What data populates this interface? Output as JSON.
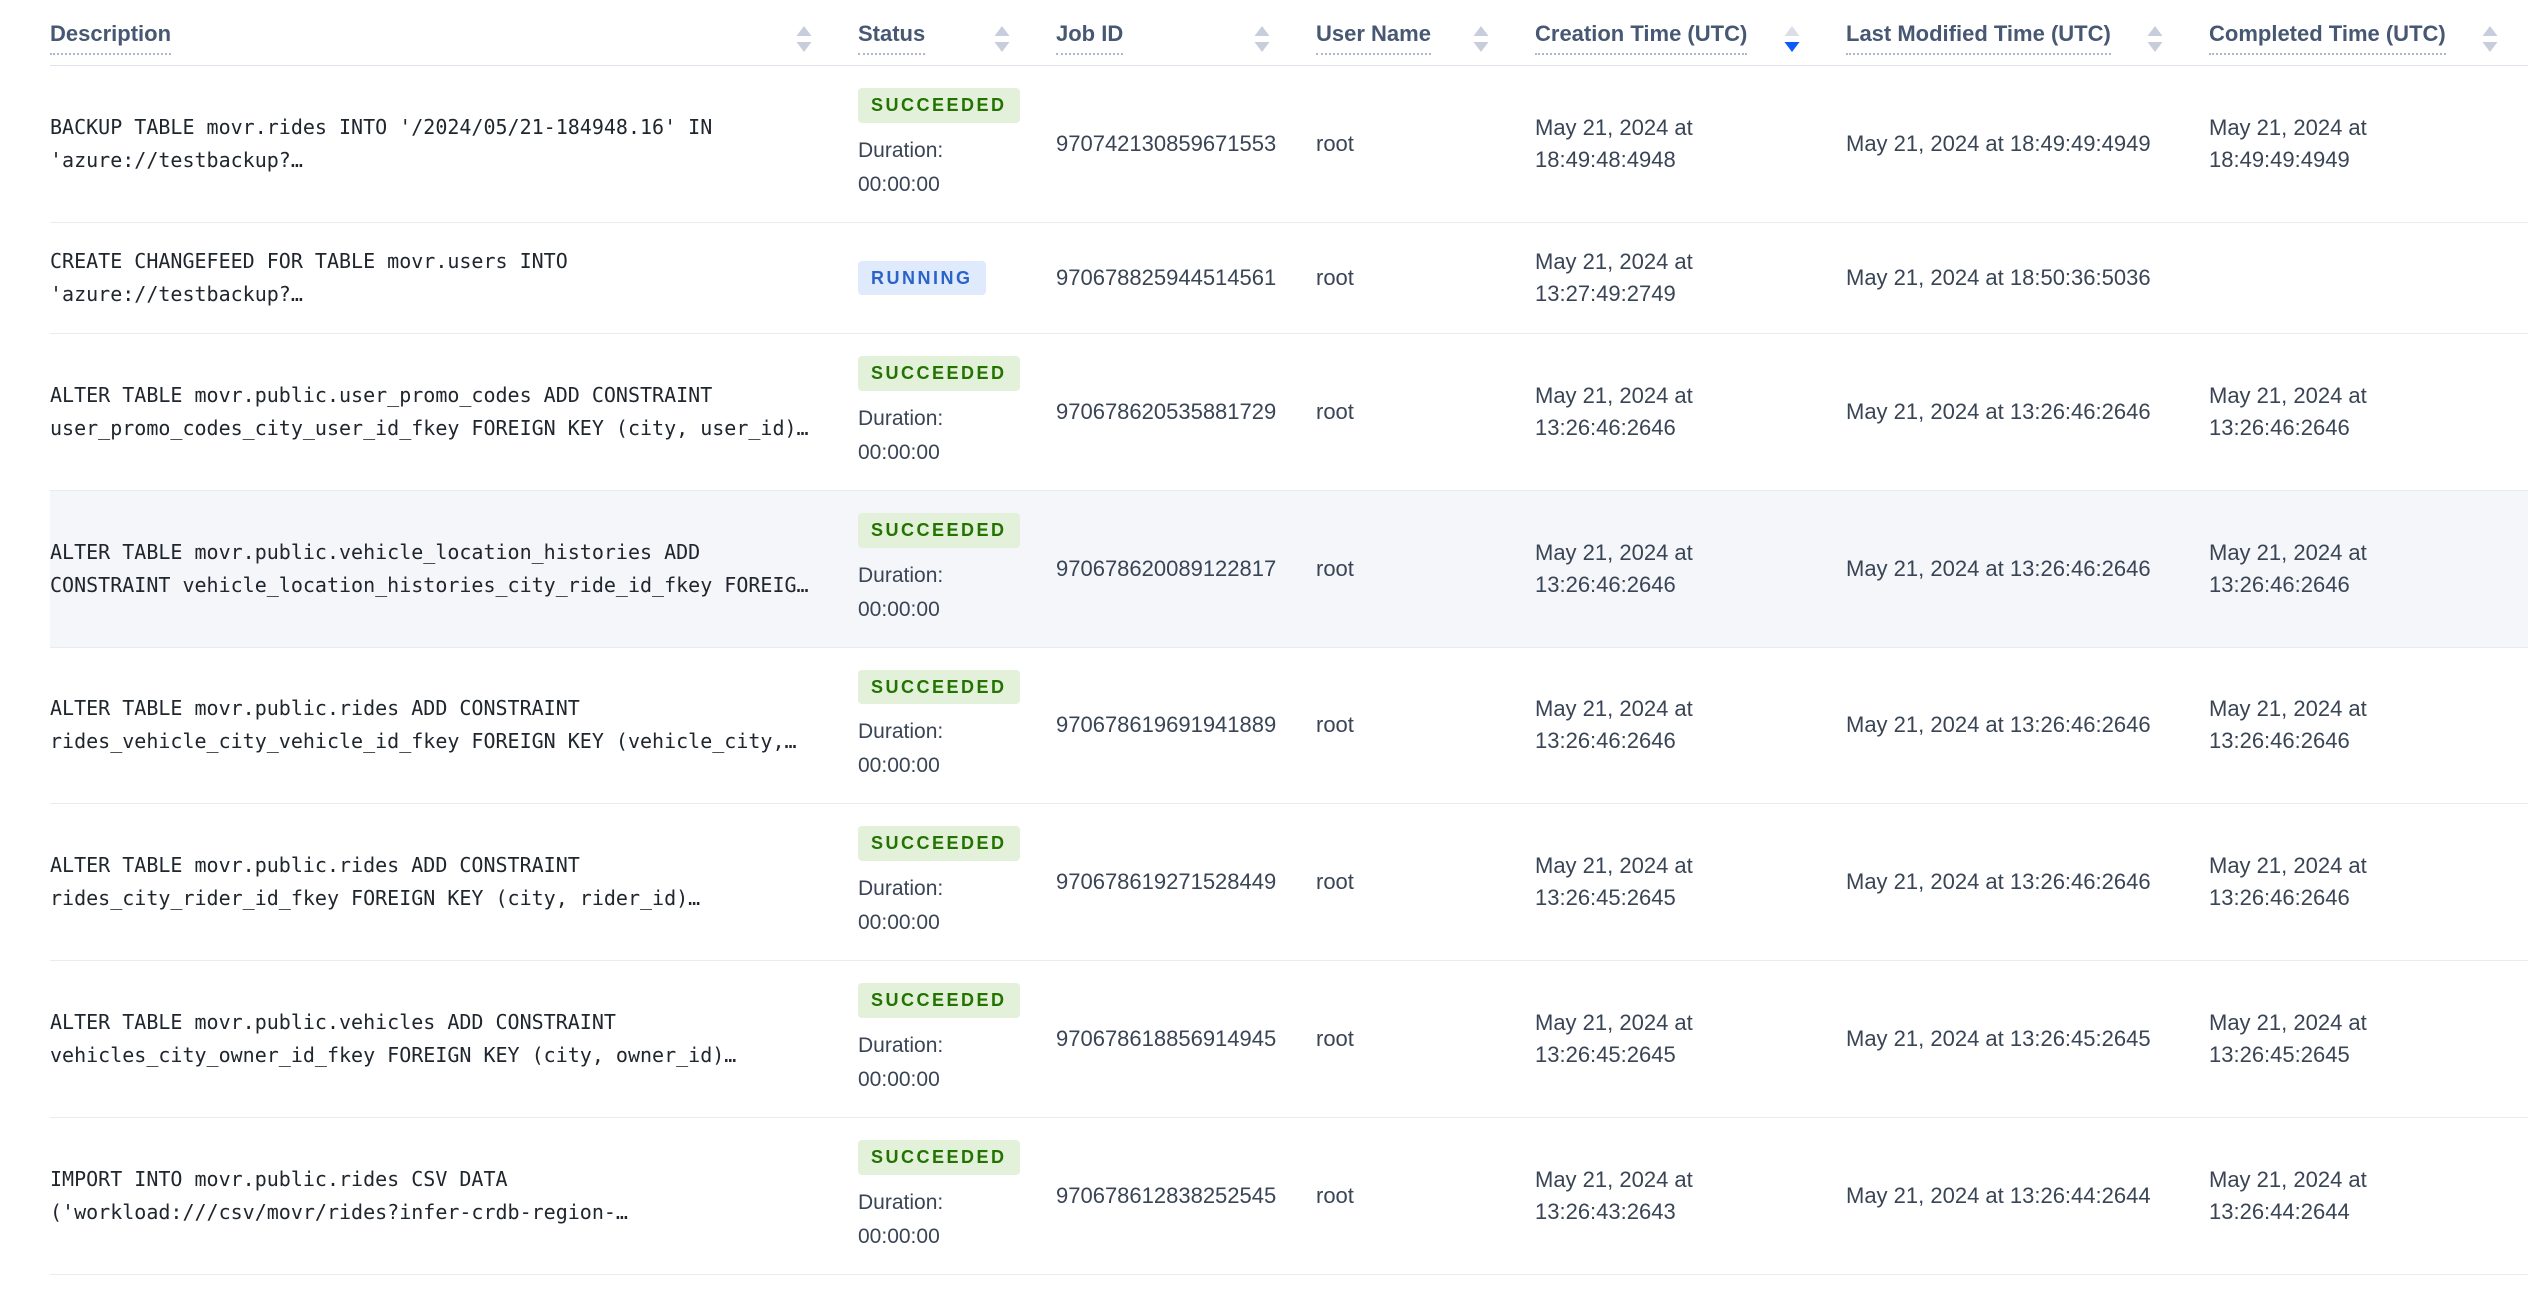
{
  "table": {
    "columns": [
      {
        "label": "Description",
        "sort": "none"
      },
      {
        "label": "Status",
        "sort": "none"
      },
      {
        "label": "Job ID",
        "sort": "none"
      },
      {
        "label": "User Name",
        "sort": "none"
      },
      {
        "label": "Creation Time (UTC)",
        "sort": "desc"
      },
      {
        "label": "Last Modified Time (UTC)",
        "sort": "none"
      },
      {
        "label": "Completed Time (UTC)",
        "sort": "none"
      }
    ],
    "duration_label": "Duration:",
    "rows": [
      {
        "description_lines": [
          "BACKUP TABLE movr.rides INTO '/2024/05/21-184948.16' IN",
          "'azure://testbackup?…"
        ],
        "status": "SUCCEEDED",
        "status_type": "succeeded",
        "duration": "00:00:00",
        "job_id": "970742130859671553",
        "user": "root",
        "created": "May 21, 2024 at 18:49:48:4948",
        "modified": "May 21, 2024 at 18:49:49:4949",
        "completed": "May 21, 2024 at 18:49:49:4949",
        "highlighted": false
      },
      {
        "description_lines": [
          "CREATE CHANGEFEED FOR TABLE movr.users INTO",
          "'azure://testbackup?…"
        ],
        "status": "RUNNING",
        "status_type": "running",
        "duration": null,
        "job_id": "970678825944514561",
        "user": "root",
        "created": "May 21, 2024 at 13:27:49:2749",
        "modified": "May 21, 2024 at 18:50:36:5036",
        "completed": "",
        "highlighted": false
      },
      {
        "description_lines": [
          "ALTER TABLE movr.public.user_promo_codes ADD CONSTRAINT",
          "user_promo_codes_city_user_id_fkey FOREIGN KEY (city, user_id)…"
        ],
        "status": "SUCCEEDED",
        "status_type": "succeeded",
        "duration": "00:00:00",
        "job_id": "970678620535881729",
        "user": "root",
        "created": "May 21, 2024 at 13:26:46:2646",
        "modified": "May 21, 2024 at 13:26:46:2646",
        "completed": "May 21, 2024 at 13:26:46:2646",
        "highlighted": false
      },
      {
        "description_lines": [
          "ALTER TABLE movr.public.vehicle_location_histories ADD",
          "CONSTRAINT vehicle_location_histories_city_ride_id_fkey FOREIG…"
        ],
        "status": "SUCCEEDED",
        "status_type": "succeeded",
        "duration": "00:00:00",
        "job_id": "970678620089122817",
        "user": "root",
        "created": "May 21, 2024 at 13:26:46:2646",
        "modified": "May 21, 2024 at 13:26:46:2646",
        "completed": "May 21, 2024 at 13:26:46:2646",
        "highlighted": true
      },
      {
        "description_lines": [
          "ALTER TABLE movr.public.rides ADD CONSTRAINT",
          "rides_vehicle_city_vehicle_id_fkey FOREIGN KEY (vehicle_city,…"
        ],
        "status": "SUCCEEDED",
        "status_type": "succeeded",
        "duration": "00:00:00",
        "job_id": "970678619691941889",
        "user": "root",
        "created": "May 21, 2024 at 13:26:46:2646",
        "modified": "May 21, 2024 at 13:26:46:2646",
        "completed": "May 21, 2024 at 13:26:46:2646",
        "highlighted": false
      },
      {
        "description_lines": [
          "ALTER TABLE movr.public.rides ADD CONSTRAINT",
          "rides_city_rider_id_fkey FOREIGN KEY (city, rider_id)…"
        ],
        "status": "SUCCEEDED",
        "status_type": "succeeded",
        "duration": "00:00:00",
        "job_id": "970678619271528449",
        "user": "root",
        "created": "May 21, 2024 at 13:26:45:2645",
        "modified": "May 21, 2024 at 13:26:46:2646",
        "completed": "May 21, 2024 at 13:26:46:2646",
        "highlighted": false
      },
      {
        "description_lines": [
          "ALTER TABLE movr.public.vehicles ADD CONSTRAINT",
          "vehicles_city_owner_id_fkey FOREIGN KEY (city, owner_id)…"
        ],
        "status": "SUCCEEDED",
        "status_type": "succeeded",
        "duration": "00:00:00",
        "job_id": "970678618856914945",
        "user": "root",
        "created": "May 21, 2024 at 13:26:45:2645",
        "modified": "May 21, 2024 at 13:26:45:2645",
        "completed": "May 21, 2024 at 13:26:45:2645",
        "highlighted": false
      },
      {
        "description_lines": [
          "IMPORT INTO movr.public.rides CSV DATA",
          "('workload:///csv/movr/rides?infer-crdb-region-…"
        ],
        "status": "SUCCEEDED",
        "status_type": "succeeded",
        "duration": "00:00:00",
        "job_id": "970678612838252545",
        "user": "root",
        "created": "May 21, 2024 at 13:26:43:2643",
        "modified": "May 21, 2024 at 13:26:44:2644",
        "completed": "May 21, 2024 at 13:26:44:2644",
        "highlighted": false
      }
    ]
  },
  "colors": {
    "succeeded_text": "#237300",
    "succeeded_bg": "#e4f1da",
    "running_text": "#2b63c9",
    "running_bg": "#dfeafc",
    "sort_inactive": "#c7cdda",
    "sort_active": "#0b5cff",
    "sort_active_pair": "#d9dee9"
  }
}
